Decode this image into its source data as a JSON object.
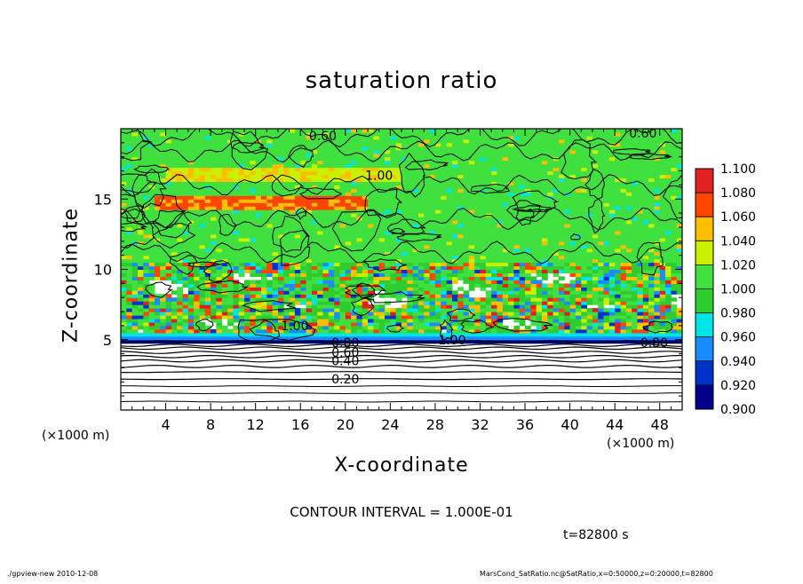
{
  "header": {
    "title": "saturation ratio"
  },
  "axes": {
    "xlabel": "X-coordinate",
    "ylabel": "Z-coordinate",
    "xunit_left": "(×1000 m)",
    "xunit_right": "(×1000 m)"
  },
  "annotations": {
    "contour_interval": "CONTOUR INTERVAL = 1.000E-01",
    "time": "t=82800 s"
  },
  "footer": {
    "left": "./gpview-new   2010-12-08",
    "right": "MarsCond_SatRatio.nc@SatRatio,x=0:50000,z=0:20000,t=82800"
  },
  "chart_data": {
    "type": "heatmap",
    "title": "saturation ratio",
    "xlabel": "X-coordinate",
    "ylabel": "Z-coordinate",
    "x_unit": "×1000 m",
    "xlim": [
      0,
      50
    ],
    "ylim": [
      0,
      20
    ],
    "x_ticks": [
      4,
      8,
      12,
      16,
      20,
      24,
      28,
      32,
      36,
      40,
      44,
      48
    ],
    "y_ticks": [
      5,
      10,
      15
    ],
    "colorbar": {
      "levels": [
        "0.900",
        "0.920",
        "0.940",
        "0.960",
        "0.980",
        "1.000",
        "1.020",
        "1.040",
        "1.060",
        "1.080",
        "1.100"
      ],
      "colors": [
        "#6a0dad",
        "#00008b",
        "#0033cc",
        "#1a8cff",
        "#00e5e5",
        "#2ecc2e",
        "#3fe03f",
        "#c8f000",
        "#ffbf00",
        "#ff4500",
        "#e0201e",
        "#ff8888"
      ]
    },
    "contour_labels": [
      {
        "text": "0.20",
        "x": 20,
        "z": 2.2
      },
      {
        "text": "0.40",
        "x": 20,
        "z": 3.5
      },
      {
        "text": "0.60",
        "x": 20,
        "z": 4.1
      },
      {
        "text": "0.80",
        "x": 20,
        "z": 4.8
      },
      {
        "text": "1.00",
        "x": 15.5,
        "z": 6.0
      },
      {
        "text": "1.00",
        "x": 29.5,
        "z": 5.0
      },
      {
        "text": "1.00",
        "x": 23,
        "z": 16.7
      },
      {
        "text": "0.80",
        "x": 47.5,
        "z": 4.8
      },
      {
        "text": "0.60",
        "x": 18,
        "z": 19.5
      },
      {
        "text": "0.60",
        "x": 46.5,
        "z": 19.7
      }
    ],
    "contour_interval": 0.1,
    "time_s": 82800
  }
}
